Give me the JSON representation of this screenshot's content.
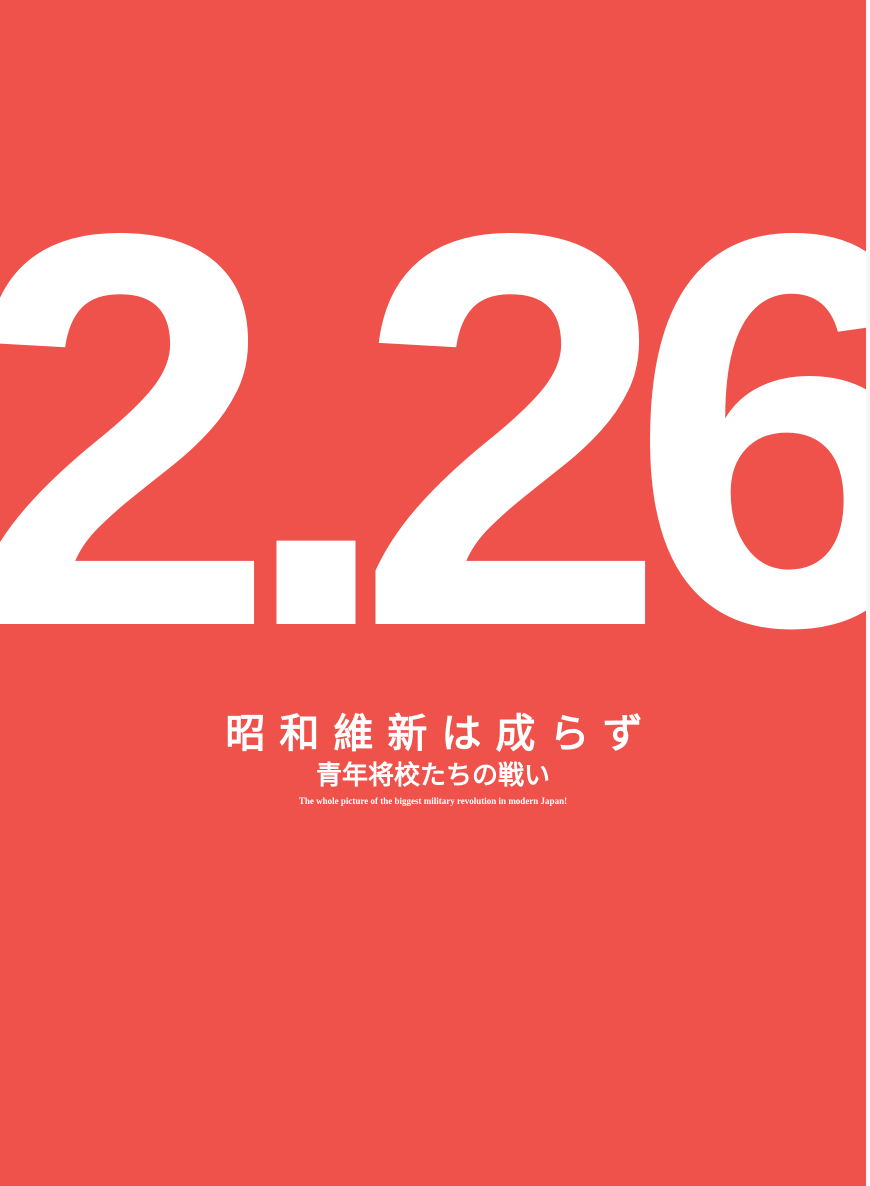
{
  "cover": {
    "big_title": "2.26",
    "title_jp": "昭和維新は成らず",
    "subtitle_jp": "青年将校たちの戦い",
    "tagline_en": "The whole picture of the biggest military revolution in modern Japan!"
  },
  "colors": {
    "background": "#ef514b",
    "text": "#ffffff"
  }
}
